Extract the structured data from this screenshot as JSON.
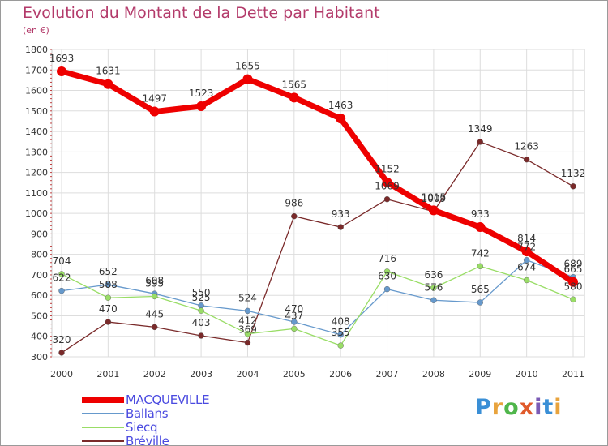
{
  "title": "Evolution du Montant de la Dette par Habitant",
  "subtitle": "(en €)",
  "logo": {
    "text": "Proxiti",
    "colors": [
      "#3a8fd6",
      "#e8a33d",
      "#4fb64b",
      "#e05a2b",
      "#7b5bb5",
      "#3a8fd6",
      "#e8a33d"
    ]
  },
  "chart_data": {
    "type": "line",
    "title": "Evolution du Montant de la Dette par Habitant",
    "subtitle": "(en €)",
    "xlabel": "",
    "ylabel": "",
    "x": [
      "2000",
      "2001",
      "2002",
      "2003",
      "2004",
      "2005",
      "2006",
      "2007",
      "2008",
      "2009",
      "2010",
      "2011"
    ],
    "ylim": [
      300,
      1800
    ],
    "yticks": [
      300,
      400,
      500,
      600,
      700,
      800,
      900,
      1000,
      1100,
      1200,
      1300,
      1400,
      1500,
      1600,
      1700,
      1800
    ],
    "grid": true,
    "legend_position": "bottom-left",
    "series": [
      {
        "name": "MACQUEVILLE",
        "color": "#ee0000",
        "values": [
          1693,
          1631,
          1497,
          1523,
          1655,
          1565,
          1463,
          1152,
          1015,
          933,
          814,
          665
        ]
      },
      {
        "name": "Ballans",
        "color": "#6699cc",
        "values": [
          622,
          652,
          608,
          550,
          524,
          470,
          408,
          630,
          576,
          565,
          772,
          689
        ]
      },
      {
        "name": "Siecq",
        "color": "#99dd66",
        "values": [
          704,
          588,
          595,
          525,
          412,
          437,
          355,
          716,
          636,
          742,
          674,
          580
        ]
      },
      {
        "name": "Bréville",
        "color": "#7a2a2a",
        "values": [
          320,
          470,
          445,
          403,
          369,
          986,
          933,
          1069,
          1009,
          1349,
          1263,
          1132
        ]
      }
    ]
  }
}
